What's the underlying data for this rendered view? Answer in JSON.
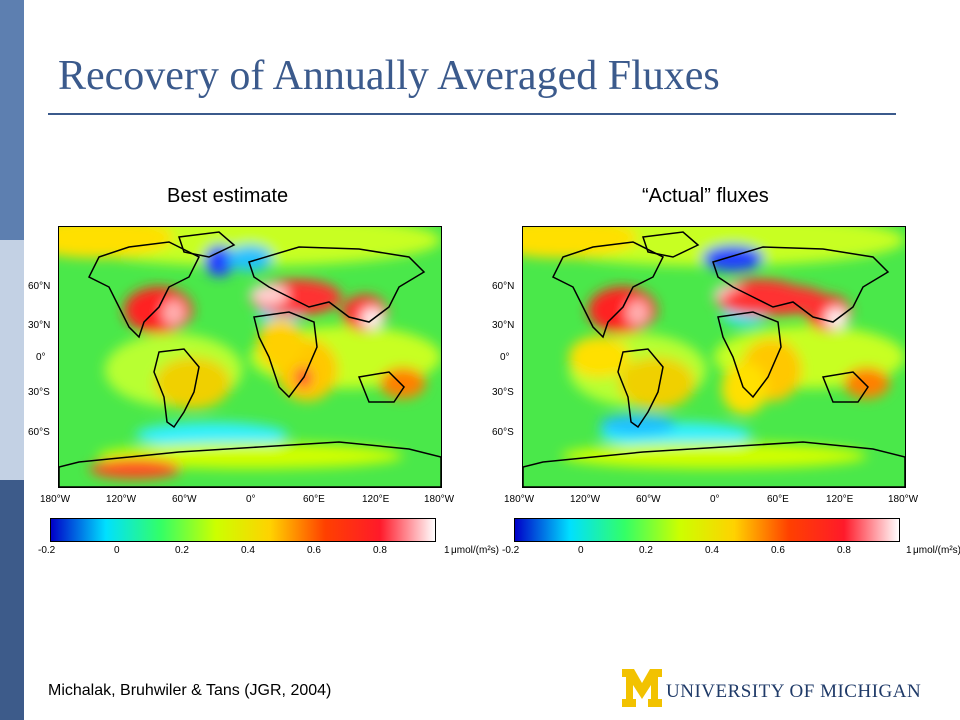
{
  "slide": {
    "title": "Recovery of Annually Averaged Fluxes",
    "citation": "Michalak, Bruhwiler & Tans (JGR, 2004)",
    "logo_text": "UNIVERSITY OF MICHIGAN",
    "logo_mark": "M",
    "colors": {
      "title": "#3b5a8c",
      "sidebar_top": "#5d7fb0",
      "sidebar_mid": "#c3d1e4",
      "sidebar_bottom": "#3d5b8a",
      "logo_gold": "#f2c200",
      "logo_navy": "#1f3a68"
    }
  },
  "panels": [
    {
      "label": "Best estimate"
    },
    {
      "label": "“Actual” fluxes"
    }
  ],
  "axes": {
    "lat_ticks": [
      "60°N",
      "30°N",
      "0°",
      "30°S",
      "60°S"
    ],
    "lon_ticks": [
      "180°W",
      "120°W",
      "60°W",
      "0°",
      "60°E",
      "120°E",
      "180°W"
    ]
  },
  "colorbar": {
    "ticks": [
      "-0.2",
      "0",
      "0.2",
      "0.4",
      "0.6",
      "0.8",
      "1"
    ],
    "unit": "μmol/(m²s)",
    "range": [
      -0.2,
      1.0
    ],
    "stops": [
      "#0000c8",
      "#00e0ff",
      "#33ff66",
      "#ccff00",
      "#ffd200",
      "#ff4000",
      "#ff1a2a",
      "#ffffff"
    ]
  }
}
